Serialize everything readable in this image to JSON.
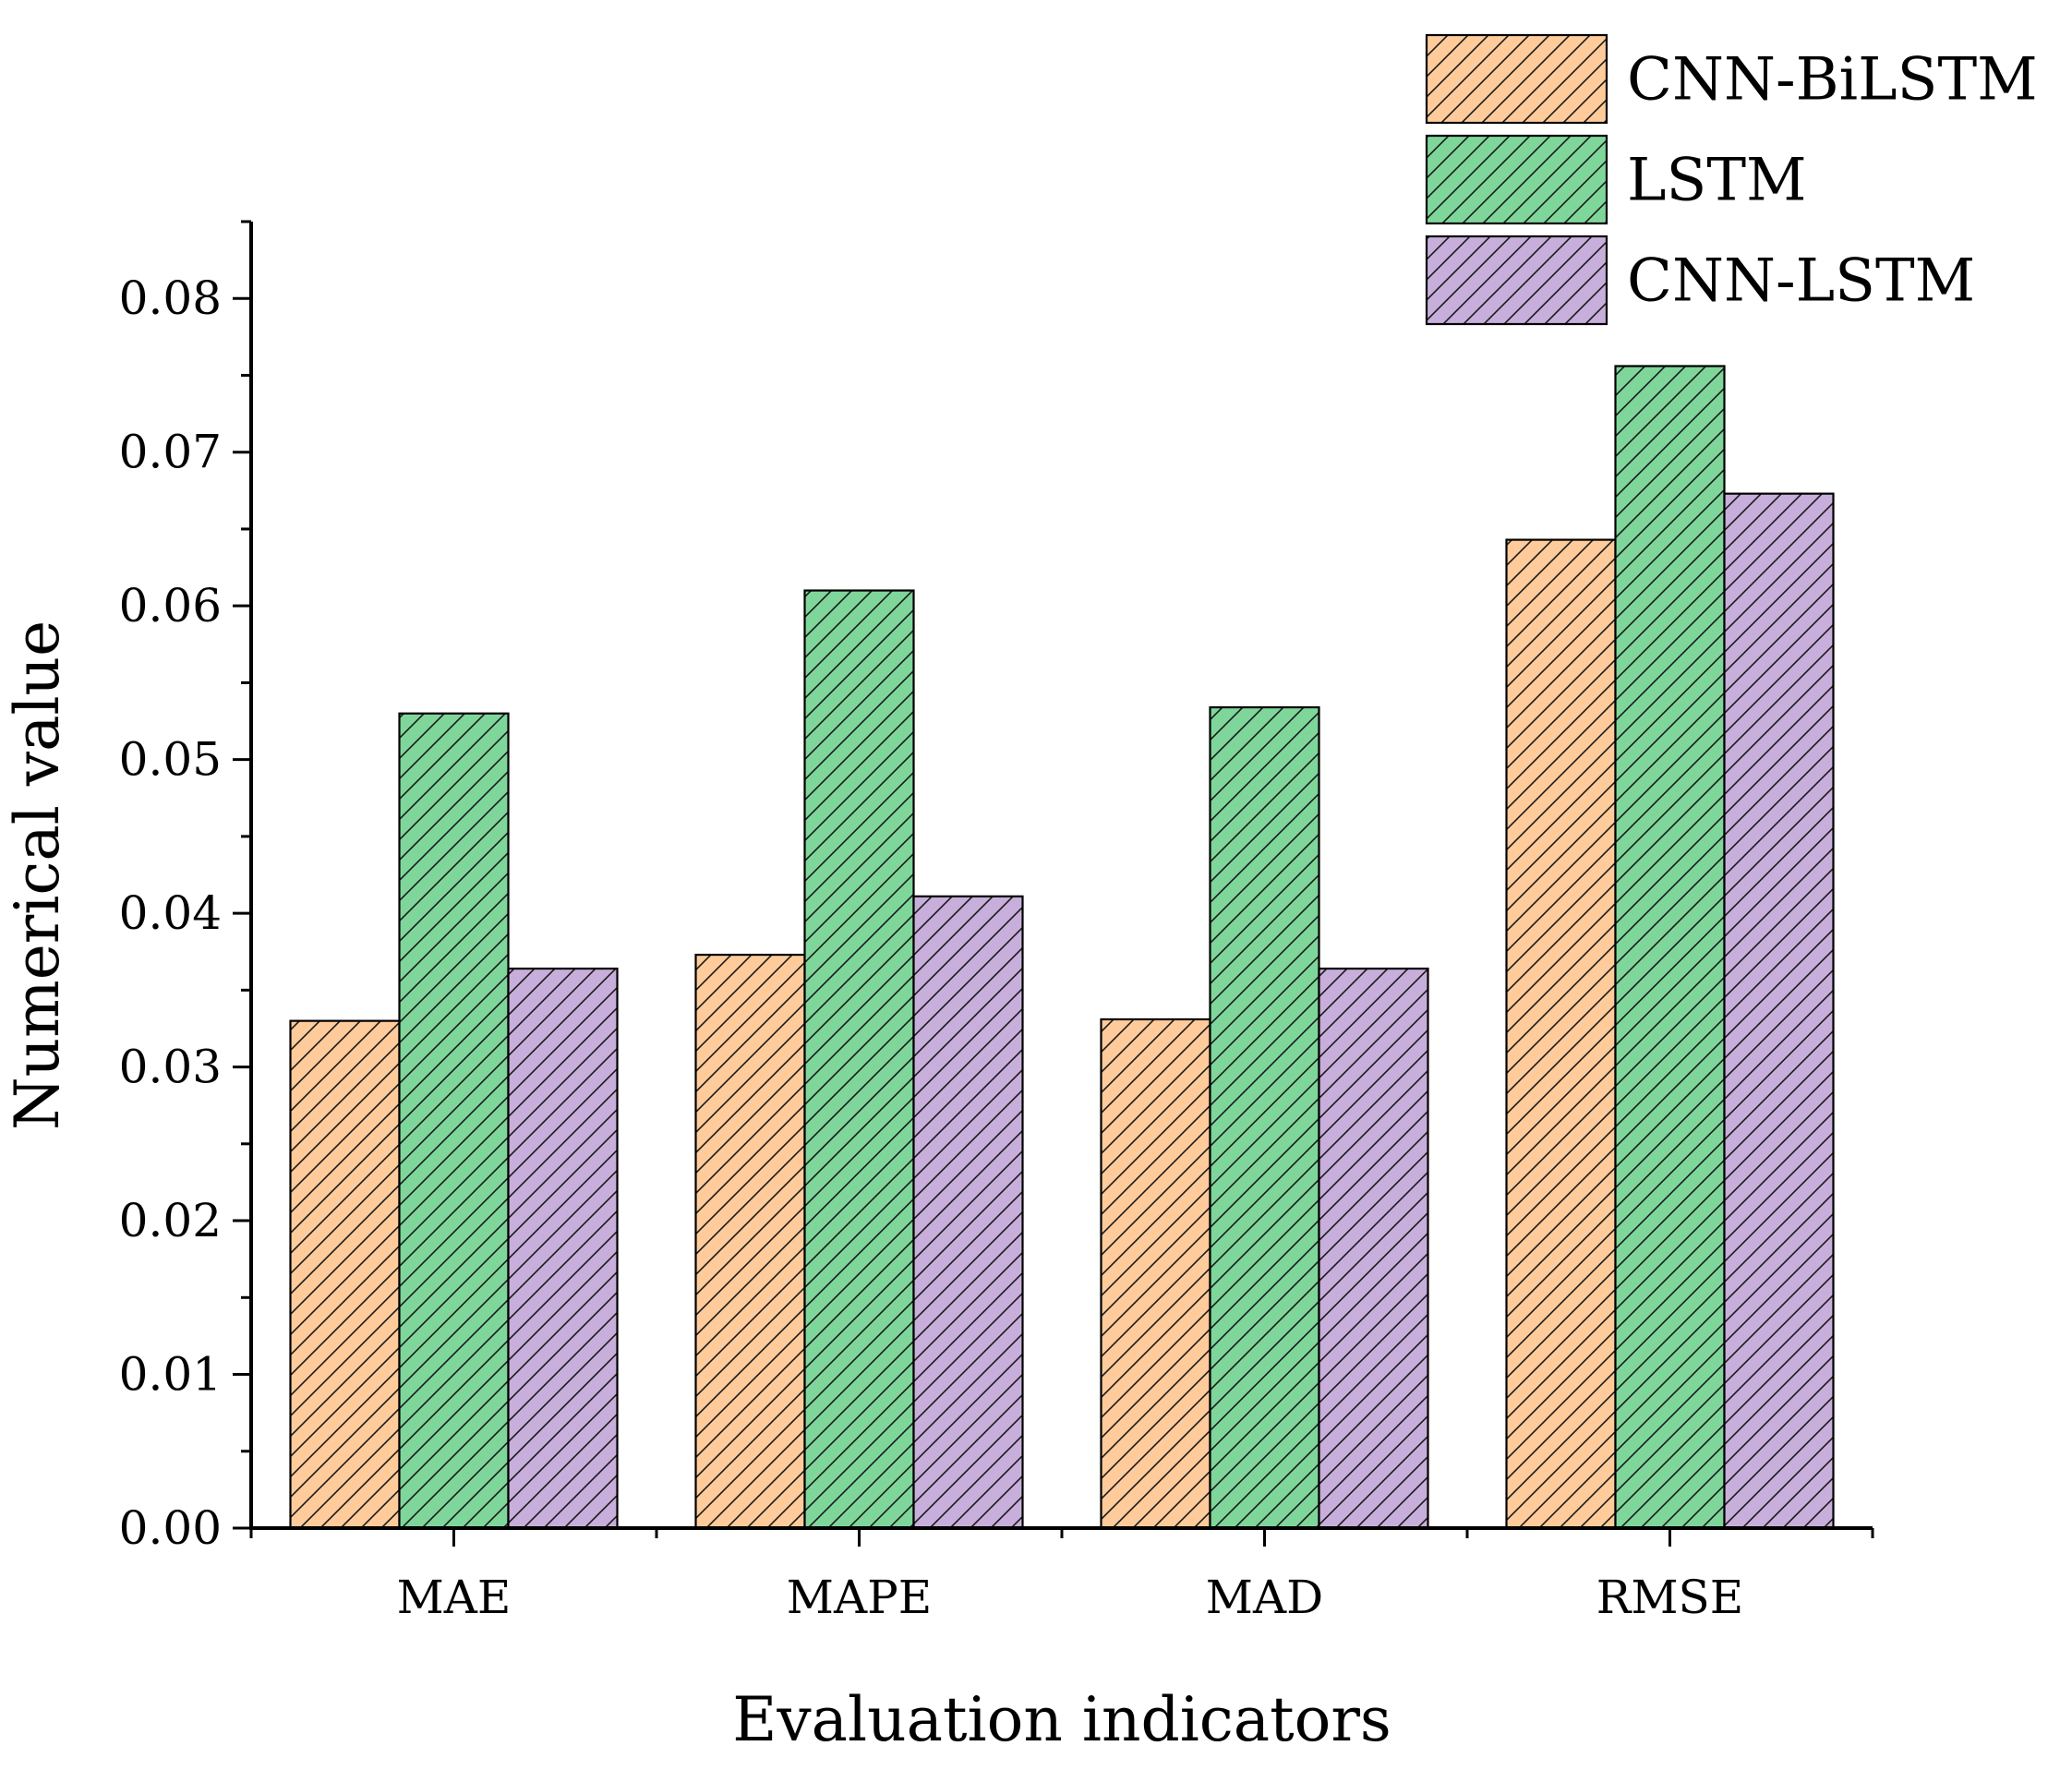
{
  "chart_data": {
    "type": "bar",
    "title": "",
    "xlabel": "Evaluation indicators",
    "ylabel": "Numerical value",
    "categories": [
      "MAE",
      "MAPE",
      "MAD",
      "RMSE"
    ],
    "series": [
      {
        "name": "CNN-BiLSTM",
        "values": [
          0.033,
          0.0373,
          0.0331,
          0.0643
        ],
        "color": "#FFCB9A",
        "pattern": "diagonal-hatch"
      },
      {
        "name": "LSTM",
        "values": [
          0.053,
          0.061,
          0.0534,
          0.0756
        ],
        "color": "#7FD69A",
        "pattern": "diagonal-hatch"
      },
      {
        "name": "CNN-LSTM",
        "values": [
          0.0364,
          0.0411,
          0.0364,
          0.0673
        ],
        "color": "#C8AEDB",
        "pattern": "diagonal-hatch"
      }
    ],
    "ylim": [
      0,
      0.085
    ],
    "yticks": [
      "0.00",
      "0.01",
      "0.02",
      "0.03",
      "0.04",
      "0.05",
      "0.06",
      "0.07",
      "0.08"
    ],
    "legend_position": "top-right",
    "grid": false
  }
}
